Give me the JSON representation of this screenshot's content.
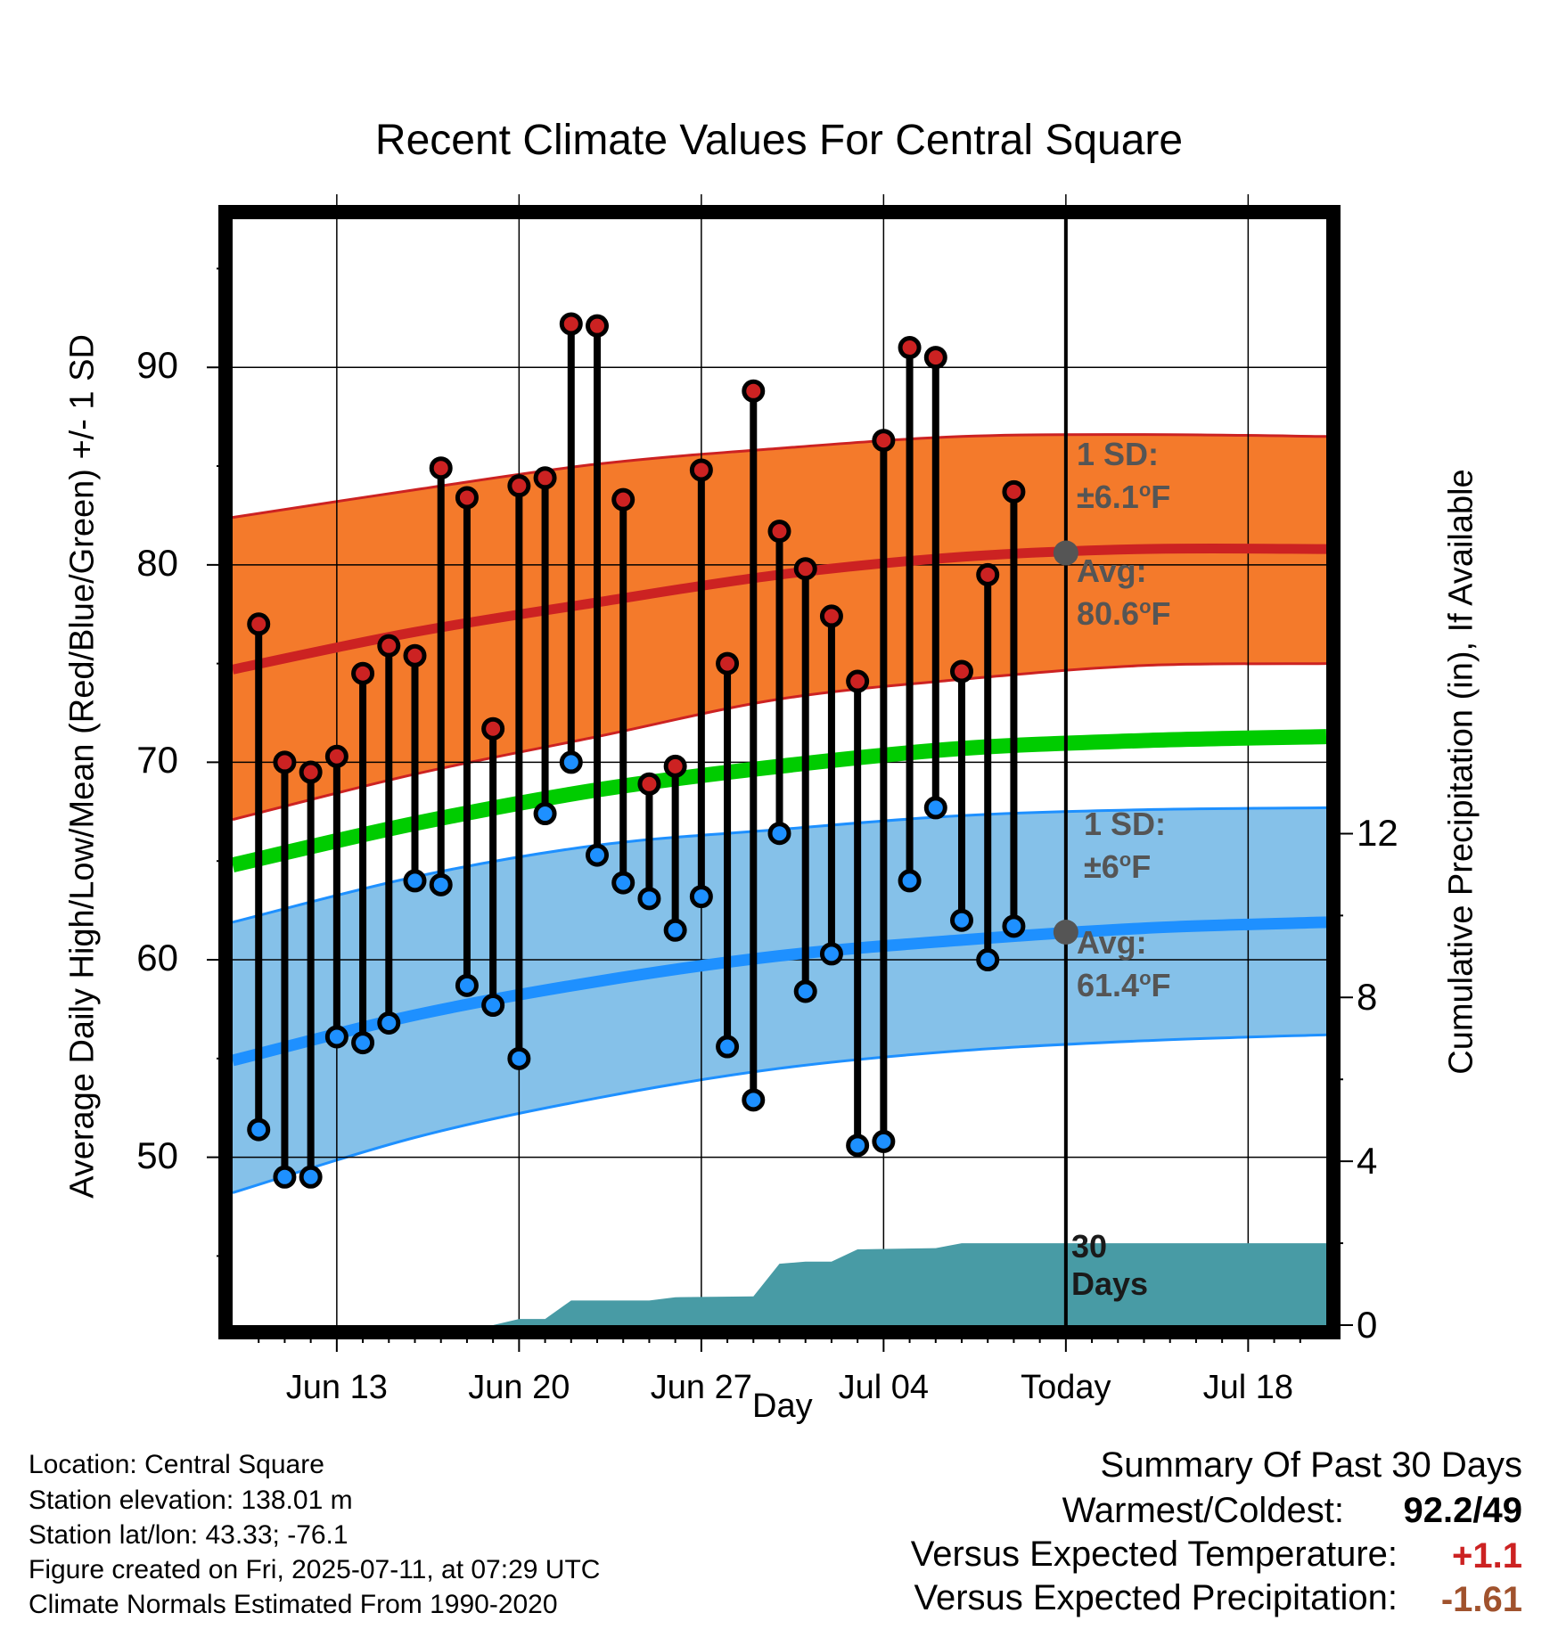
{
  "chart_data": {
    "type": "line",
    "title": "Recent Climate Values For Central Square",
    "xlabel": "Day",
    "ylabel": "Average Daily High/Low/Mean (Red/Blue/Green) +/- 1 SD",
    "y2label": "Cumulative Precipitation (in), If Available",
    "x_tick_labels": [
      "Jun 13",
      "Jun 20",
      "Jun 27",
      "Jul 04",
      "Today",
      "Jul 18"
    ],
    "x_tick_dates": [
      "2025-06-13",
      "2025-06-20",
      "2025-06-27",
      "2025-07-04",
      "2025-07-11",
      "2025-07-18"
    ],
    "xlim": [
      "2025-06-09",
      "2025-07-21"
    ],
    "today": "2025-07-11",
    "ylim": [
      41.5,
      97.5
    ],
    "y_ticks": [
      50,
      60,
      70,
      80,
      90
    ],
    "y2lim": [
      0,
      27
    ],
    "y2_ticks": [
      0,
      4,
      8,
      12
    ],
    "grid": true,
    "daily_observations": {
      "dates": [
        "2025-06-10",
        "2025-06-11",
        "2025-06-12",
        "2025-06-13",
        "2025-06-14",
        "2025-06-15",
        "2025-06-16",
        "2025-06-17",
        "2025-06-18",
        "2025-06-19",
        "2025-06-20",
        "2025-06-21",
        "2025-06-22",
        "2025-06-23",
        "2025-06-24",
        "2025-06-25",
        "2025-06-26",
        "2025-06-27",
        "2025-06-28",
        "2025-06-29",
        "2025-06-30",
        "2025-07-01",
        "2025-07-02",
        "2025-07-03",
        "2025-07-04",
        "2025-07-05",
        "2025-07-06",
        "2025-07-07",
        "2025-07-08",
        "2025-07-09",
        "2025-07-10"
      ],
      "high": [
        77.0,
        70.0,
        69.5,
        70.3,
        74.5,
        75.9,
        75.4,
        84.9,
        83.4,
        71.7,
        84.0,
        84.4,
        92.2,
        92.1,
        83.3,
        68.9,
        69.8,
        84.8,
        75.0,
        88.8,
        81.7,
        79.8,
        77.4,
        74.1,
        86.3,
        91.0,
        90.5,
        74.6,
        79.5,
        83.7,
        null
      ],
      "low": [
        51.4,
        49.0,
        49.0,
        56.1,
        55.8,
        56.8,
        64.0,
        63.8,
        58.7,
        57.7,
        55.0,
        67.4,
        70.0,
        65.3,
        63.9,
        63.1,
        61.5,
        63.2,
        55.6,
        52.9,
        66.4,
        58.4,
        60.3,
        50.6,
        50.8,
        64.0,
        67.7,
        62.0,
        60.0,
        61.7,
        null
      ]
    },
    "normals": {
      "dates": [
        "2025-06-09",
        "2025-06-16",
        "2025-06-23",
        "2025-06-30",
        "2025-07-07",
        "2025-07-14",
        "2025-07-21"
      ],
      "high_avg": [
        74.7,
        76.6,
        78.1,
        79.5,
        80.4,
        80.8,
        80.8
      ],
      "high_upper": [
        82.4,
        83.8,
        85.1,
        85.9,
        86.5,
        86.6,
        86.5
      ],
      "high_lower": [
        67.1,
        69.4,
        71.3,
        73.2,
        74.2,
        74.9,
        75.0
      ],
      "mean_avg": [
        64.8,
        66.9,
        68.6,
        69.8,
        70.7,
        71.1,
        71.3
      ],
      "low_avg": [
        54.9,
        57.2,
        58.9,
        60.2,
        61.0,
        61.6,
        61.9
      ],
      "low_upper": [
        61.9,
        64.2,
        65.8,
        66.6,
        67.3,
        67.6,
        67.7
      ],
      "low_lower": [
        48.2,
        51.0,
        53.0,
        54.5,
        55.4,
        55.9,
        56.2
      ]
    },
    "cumulative_precipitation": {
      "dates": [
        "2025-06-17",
        "2025-06-18",
        "2025-06-19",
        "2025-06-20",
        "2025-06-21",
        "2025-06-22",
        "2025-06-25",
        "2025-06-26",
        "2025-06-29",
        "2025-06-30",
        "2025-07-01",
        "2025-07-02",
        "2025-07-03",
        "2025-07-06",
        "2025-07-07",
        "2025-07-10",
        "2025-07-21"
      ],
      "values": [
        0.0,
        0.0,
        0.0,
        0.15,
        0.15,
        0.6,
        0.6,
        0.68,
        0.7,
        1.5,
        1.55,
        1.55,
        1.85,
        1.88,
        2.0,
        2.0,
        2.0
      ]
    },
    "series_colors": {
      "high": "#cc2222",
      "high_band": "#f47a2b",
      "low": "#1e90ff",
      "low_band": "#85c1e9",
      "mean": "#00cc00",
      "precip": "#489ba5",
      "today_marker": "#555555"
    },
    "annotations": {
      "high_sd_label": "1 SD:",
      "high_sd_value": "±6.1",
      "high_avg_label": "Avg:",
      "high_avg_value": "80.6",
      "low_sd_label": "1 SD:",
      "low_sd_value": "±6",
      "low_avg_label": "Avg:",
      "low_avg_value": "61.4",
      "degree_symbol": "o",
      "unit": "F",
      "precip_label_1": "30",
      "precip_label_2": "Days",
      "today_high_avg": 80.6,
      "today_low_avg": 61.4
    }
  },
  "metadata": {
    "location": "Location: Central Square",
    "elevation": "Station elevation: 138.01 m",
    "latlon": "Station lat/lon: 43.33; -76.1",
    "created": "Figure created on Fri, 2025-07-11, at 07:29 UTC",
    "normals": "Climate Normals Estimated From 1990-2020"
  },
  "summary": {
    "heading": "Summary Of Past 30 Days",
    "warmest_label": "Warmest/Coldest:",
    "warmest_value": "92.2/49",
    "temp_label": "Versus Expected Temperature:",
    "temp_value": "+1.1",
    "temp_color": "#cc2222",
    "precip_label": "Versus Expected Precipitation:",
    "precip_value": "-1.61",
    "precip_color": "#a0522d"
  }
}
